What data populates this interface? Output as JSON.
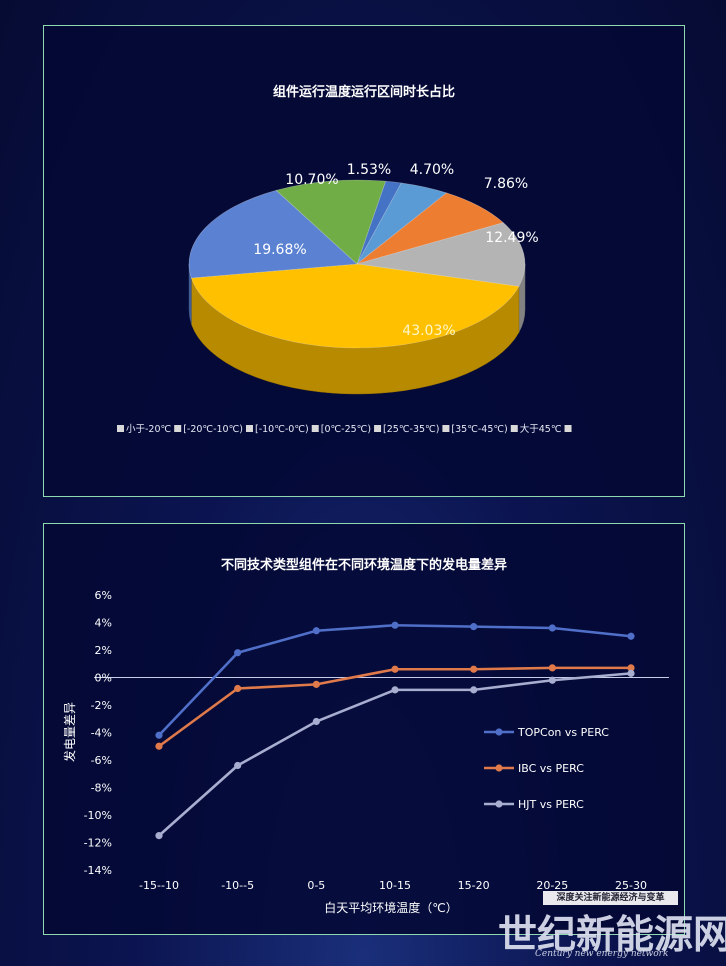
{
  "pie_chart": {
    "title": "组件运行温度运行区间时长占比",
    "legend_marker_color": "#d9d9d9"
  },
  "line_chart": {
    "title": "不同技术类型组件在不同环境温度下的发电量差异",
    "zero_line_color": "#c8cce8"
  },
  "watermark": {
    "tagline": "深度关注新能源经济与变革",
    "name": "世纪新能源网",
    "english": "Century new energy network"
  },
  "chart_data": [
    {
      "type": "pie",
      "title": "组件运行温度运行区间时长占比",
      "legend_position": "bottom",
      "slices": [
        {
          "label": "小于-20℃",
          "value": 1.53,
          "display": "1.53%",
          "color": "#4472c4"
        },
        {
          "label": "[-20℃-10℃)",
          "value": 4.7,
          "display": "4.70%",
          "color": "#5b9bd5"
        },
        {
          "label": "[-10℃-0℃)",
          "value": 7.86,
          "display": "7.86%",
          "color": "#ed7d31"
        },
        {
          "label": "[0℃-25℃)",
          "value": 12.49,
          "display": "12.49%",
          "color": "#b4b4b4"
        },
        {
          "label": "[25℃-35℃)",
          "value": 43.03,
          "display": "43.03%",
          "color": "#ffc000"
        },
        {
          "label": "[35℃-45℃)",
          "value": 19.68,
          "display": "19.68%",
          "color": "#5b82d2"
        },
        {
          "label": "大于45℃",
          "value": 10.7,
          "display": "10.70%",
          "color": "#70ad47"
        }
      ],
      "legend": [
        "小于-20℃",
        "[-20℃-10℃)",
        "[-10℃-0℃)",
        "[0℃-25℃)",
        "[25℃-35℃)",
        "[35℃-45℃)",
        "大于45℃"
      ]
    },
    {
      "type": "line",
      "title": "不同技术类型组件在不同环境温度下的发电量差异",
      "xlabel": "白天平均环境温度（℃）",
      "ylabel": "发电量差异",
      "categories": [
        "-15--10",
        "-10--5",
        "0-5",
        "10-15",
        "15-20",
        "20-25",
        "25-30"
      ],
      "ylim": [
        -14,
        6
      ],
      "yticks": [
        6,
        4,
        2,
        0,
        -2,
        -4,
        -6,
        -8,
        -10,
        -12,
        -14
      ],
      "ytick_labels": [
        "6%",
        "4%",
        "2%",
        "0%",
        "-2%",
        "-4%",
        "-6%",
        "-8%",
        "-10%",
        "-12%",
        "-14%"
      ],
      "grid": false,
      "legend_position": "right",
      "series": [
        {
          "name": "TOPCon vs PERC",
          "color": "#4f6fc8",
          "values": [
            -4.2,
            1.8,
            3.4,
            3.8,
            3.7,
            3.6,
            3.0
          ]
        },
        {
          "name": "IBC vs PERC",
          "color": "#e07a4a",
          "values": [
            -5.0,
            -0.8,
            -0.5,
            0.6,
            0.6,
            0.7,
            0.7
          ]
        },
        {
          "name": "HJT vs PERC",
          "color": "#a8aed0",
          "values": [
            -11.5,
            -6.4,
            -3.2,
            -0.9,
            -0.9,
            -0.2,
            0.3
          ]
        }
      ]
    }
  ]
}
